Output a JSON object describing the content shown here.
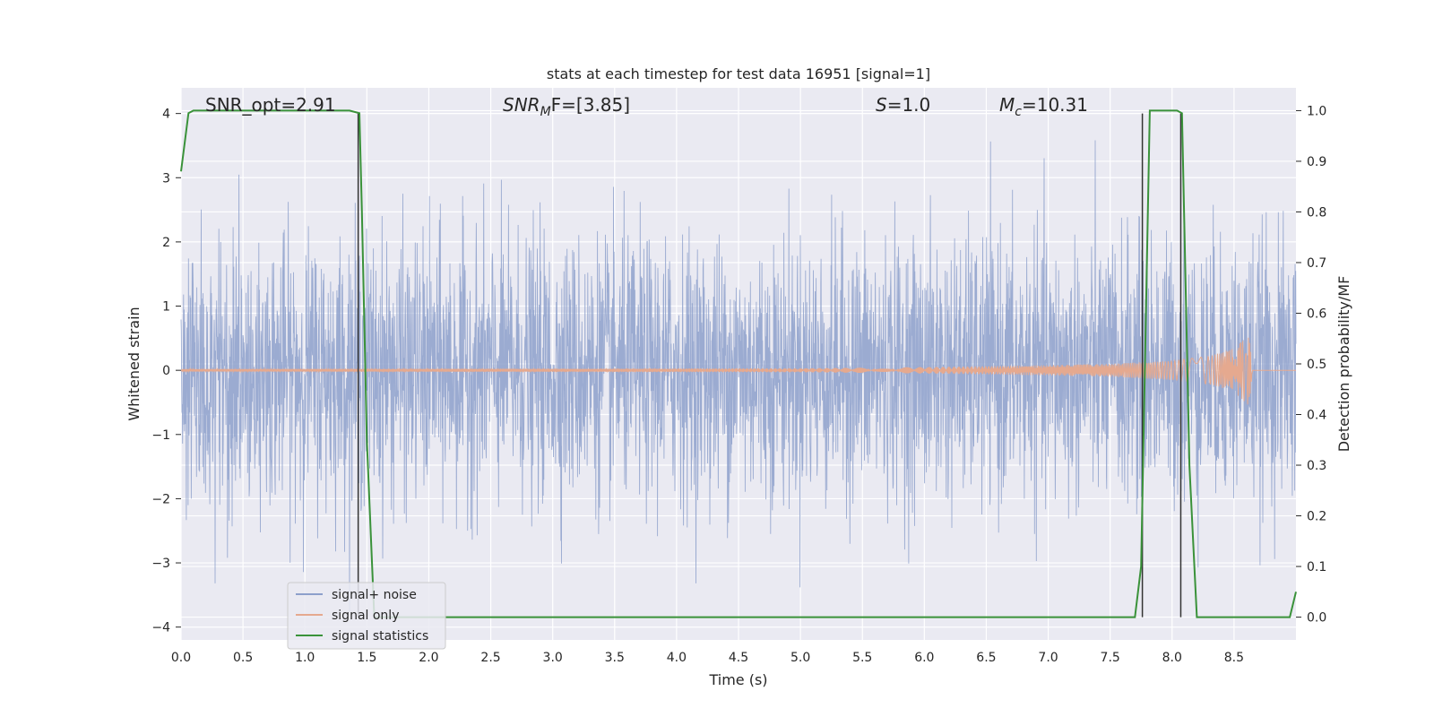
{
  "chart_data": {
    "type": "line",
    "title": "stats at each timestep for test data 16951 [signal=1]",
    "xlabel": "Time (s)",
    "ylabel": "Whitened strain",
    "ylabel_right": "Detection probability/MF",
    "xlim": [
      0.0,
      9.0
    ],
    "ylim": [
      -4.2,
      4.4
    ],
    "ylim_right": [
      -0.045,
      1.045
    ],
    "x_ticks": [
      "0.0",
      "0.5",
      "1.0",
      "1.5",
      "2.0",
      "2.5",
      "3.0",
      "3.5",
      "4.0",
      "4.5",
      "5.0",
      "5.5",
      "6.0",
      "6.5",
      "7.0",
      "7.5",
      "8.0",
      "8.5"
    ],
    "y_ticks_left": [
      "4",
      "3",
      "2",
      "1",
      "0",
      "−1",
      "−2",
      "−3",
      "−4"
    ],
    "y_ticks_right": [
      "1.0",
      "0.9",
      "0.8",
      "0.7",
      "0.6",
      "0.5",
      "0.4",
      "0.3",
      "0.2",
      "0.1",
      "0.0"
    ],
    "grid": true,
    "legend_position": "lower-left",
    "annotations": {
      "snr_opt": "SNR_opt=2.91",
      "snr_mf_base": "SNR",
      "snr_mf_sub": "M",
      "snr_mf_rest": "F=[3.85]",
      "s_var": "S",
      "s_rest": "=1.0",
      "mc_var": "M",
      "mc_sub": "c",
      "mc_rest": "=10.31"
    },
    "series": [
      {
        "name": "signal+ noise",
        "color": "#8da0cb",
        "description_type": "noise",
        "duration": 9.0,
        "amplitude_std": 1.0
      },
      {
        "name": "signal only",
        "color": "#e5a98f",
        "description_type": "chirp",
        "x": [
          0.0,
          5.0,
          6.0,
          7.0,
          7.5,
          8.0,
          8.3,
          8.5,
          8.62,
          8.65
        ],
        "envelope": [
          0.02,
          0.03,
          0.05,
          0.08,
          0.1,
          0.15,
          0.22,
          0.34,
          0.55,
          0.0
        ]
      },
      {
        "name": "signal statistics",
        "color": "#3a923a",
        "x": [
          0.0,
          0.06,
          0.1,
          1.36,
          1.44,
          1.46,
          1.5,
          1.56,
          1.65,
          3.4,
          3.5,
          5.8,
          5.9,
          7.7,
          7.75,
          7.82,
          8.04,
          8.08,
          8.14,
          8.2,
          8.95,
          9.0
        ],
        "y": [
          0.88,
          0.995,
          1.0,
          1.0,
          0.995,
          0.8,
          0.35,
          0.0,
          0.0,
          0.0,
          0.0,
          0.0,
          0.0,
          0.0,
          0.1,
          1.0,
          1.0,
          0.995,
          0.3,
          0.0,
          0.0,
          0.05
        ]
      }
    ],
    "vertical_lines": [
      1.43,
      7.76,
      8.07
    ],
    "vertical_line_color": "#333333"
  }
}
